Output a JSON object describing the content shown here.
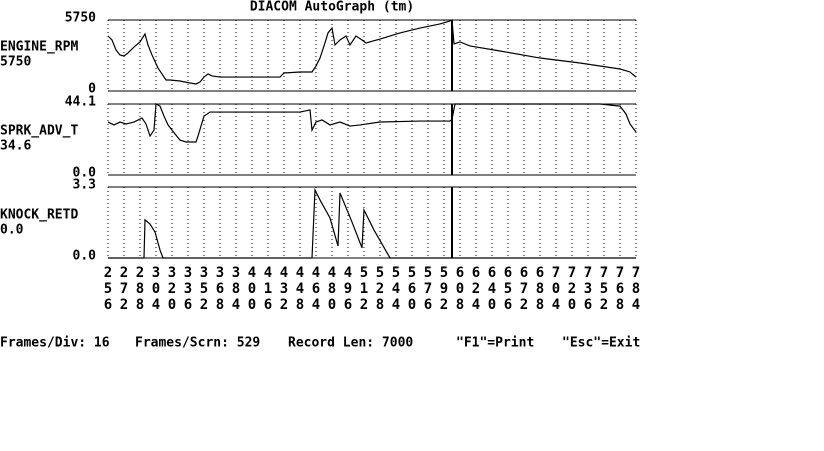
{
  "title": "DIACOM AutoGraph (tm)",
  "footer": [
    "Frames/Div: 16",
    "Frames/Scrn: 529",
    "Record Len: 7000",
    "\"F1\"=Print",
    "\"Esc\"=Exit"
  ],
  "cursor": 600,
  "chart_data": [
    {
      "type": "line",
      "name": "ENGINE_RPM",
      "readout": "5750",
      "color": "#000000",
      "xlim": [
        256,
        784
      ],
      "ylim": [
        0,
        5750
      ],
      "yticks": [
        0,
        5750
      ],
      "x": [
        256,
        260,
        264,
        268,
        272,
        276,
        282,
        288,
        293,
        296,
        300,
        306,
        310,
        314,
        318,
        328,
        338,
        344,
        348,
        352,
        356,
        360,
        368,
        388,
        408,
        428,
        432,
        448,
        460,
        464,
        468,
        472,
        476,
        480,
        483,
        488,
        494,
        498,
        504,
        510,
        514,
        528,
        548,
        568,
        588,
        598,
        600,
        602,
        608,
        618,
        648,
        688,
        728,
        768,
        778,
        784
      ],
      "values": [
        4450,
        4130,
        3320,
        2920,
        2840,
        3080,
        3560,
        3970,
        4620,
        3730,
        2920,
        1860,
        1380,
        890,
        890,
        810,
        650,
        570,
        730,
        1130,
        1380,
        1220,
        1130,
        1130,
        1130,
        1130,
        1460,
        1540,
        1540,
        2020,
        2670,
        3650,
        4700,
        5100,
        3730,
        4130,
        4450,
        3730,
        4450,
        4130,
        3890,
        4210,
        4700,
        5100,
        5430,
        5670,
        5750,
        3810,
        3970,
        3650,
        3240,
        2670,
        2270,
        1780,
        1540,
        1130
      ]
    },
    {
      "type": "line",
      "name": "SPRK_ADV_T",
      "readout": "34.6",
      "color": "#000000",
      "xlim": [
        256,
        784
      ],
      "ylim": [
        0,
        44.1
      ],
      "yticks": [
        {
          "value": 0,
          "label": "0.0"
        },
        44.1
      ],
      "x": [
        256,
        262,
        268,
        274,
        282,
        290,
        294,
        298,
        302,
        304,
        308,
        312,
        316,
        320,
        328,
        334,
        344,
        346,
        352,
        358,
        388,
        428,
        448,
        458,
        460,
        464,
        470,
        478,
        488,
        498,
        508,
        528,
        568,
        598,
        600,
        603,
        608,
        748,
        768,
        774,
        778,
        784
      ],
      "values": [
        32.9,
        31.1,
        32.9,
        31.7,
        32.9,
        35.4,
        31.7,
        24.2,
        27.9,
        44.1,
        42.8,
        36.6,
        31.1,
        27.9,
        21.7,
        20.5,
        20.5,
        24.2,
        36.6,
        39.1,
        39.1,
        39.1,
        39.1,
        40.4,
        27.9,
        32.9,
        34.2,
        31.1,
        32.9,
        30.4,
        31.1,
        32.9,
        33.5,
        33.5,
        34.6,
        44.1,
        44.1,
        44.1,
        42.8,
        37.9,
        31.7,
        26.7
      ]
    },
    {
      "type": "line",
      "name": "KNOCK_RETD",
      "readout": "0.0",
      "color": "#000000",
      "xlim": [
        256,
        784
      ],
      "ylim": [
        0,
        3.3
      ],
      "yticks": [
        {
          "value": 0,
          "label": "0.0"
        },
        3.3
      ],
      "xticks": [
        256,
        272,
        288,
        304,
        320,
        336,
        352,
        368,
        384,
        400,
        416,
        432,
        448,
        464,
        480,
        496,
        512,
        528,
        544,
        560,
        576,
        592,
        608,
        624,
        640,
        656,
        672,
        688,
        704,
        720,
        736,
        752,
        768,
        784
      ],
      "x": [
        256,
        292,
        293,
        298,
        303,
        308,
        311,
        460,
        463,
        468,
        478,
        486,
        488,
        493,
        500,
        510,
        512,
        522,
        538,
        784
      ],
      "values": [
        0,
        0,
        1.77,
        1.58,
        1.21,
        0.37,
        0,
        0,
        3.16,
        2.7,
        1.86,
        0.56,
        3.02,
        2.46,
        1.67,
        0.47,
        2.23,
        1.3,
        0,
        0
      ]
    }
  ]
}
